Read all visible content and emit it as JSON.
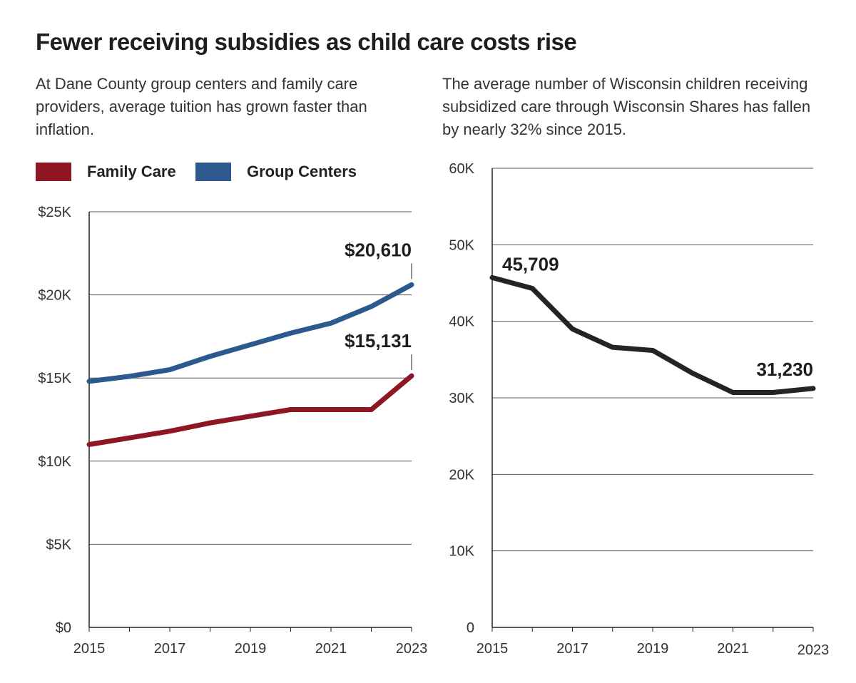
{
  "title": "Fewer receiving subsidies as child care costs rise",
  "chart_data": [
    {
      "type": "line",
      "subtitle": "At Dane County group centers and family care providers, average tuition has grown faster than inflation.",
      "x": [
        2015,
        2016,
        2017,
        2018,
        2019,
        2020,
        2021,
        2022,
        2023
      ],
      "x_tick_labels": [
        "2015",
        "2017",
        "2019",
        "2021",
        "2023"
      ],
      "y_tick_labels": [
        "$0",
        "$5K",
        "$10K",
        "$15K",
        "$20K",
        "$25K"
      ],
      "ylim": [
        0,
        25000
      ],
      "grid": true,
      "legend": "top-left",
      "series": [
        {
          "name": "Family Care",
          "color": "#8e1723",
          "values": [
            11000,
            11400,
            11800,
            12300,
            12700,
            13100,
            13100,
            13100,
            15131
          ],
          "end_label": "$15,131"
        },
        {
          "name": "Group Centers",
          "color": "#2c5a8f",
          "values": [
            14800,
            15100,
            15500,
            16300,
            17000,
            17700,
            18300,
            19300,
            20610
          ],
          "end_label": "$20,610"
        }
      ]
    },
    {
      "type": "line",
      "subtitle": "The average number of Wisconsin children receiving subsidized care through Wisconsin Shares has fallen by nearly 32% since 2015.",
      "x": [
        2015,
        2016,
        2017,
        2018,
        2019,
        2020,
        2021,
        2022,
        2023
      ],
      "x_tick_labels": [
        "2015",
        "2017",
        "2019",
        "2021",
        "2023"
      ],
      "y_tick_labels": [
        "0",
        "10K",
        "20K",
        "30K",
        "40K",
        "50K",
        "60K"
      ],
      "ylim": [
        0,
        60000
      ],
      "grid": true,
      "series": [
        {
          "color": "#232520",
          "values": [
            45709,
            44300,
            39000,
            36600,
            36200,
            33200,
            30700,
            30700,
            31230
          ],
          "start_label": "45,709",
          "end_label": "31,230"
        }
      ]
    }
  ]
}
